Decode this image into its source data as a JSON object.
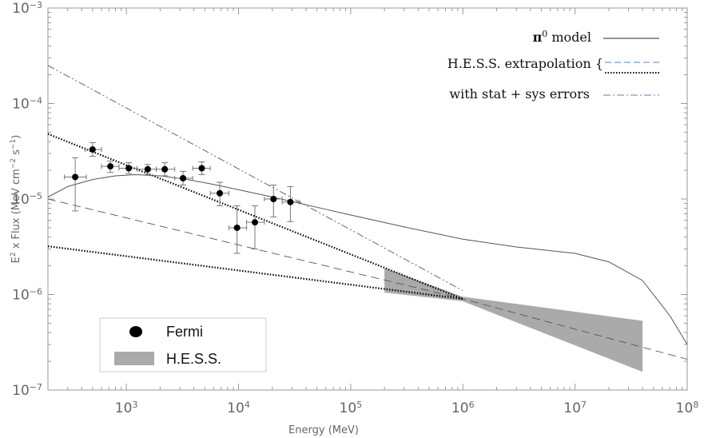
{
  "chart_data": {
    "type": "scatter",
    "xlabel": "Energy (MeV)",
    "ylabel": "E² x Flux (MeV cm⁻² s⁻¹)",
    "ylabel_parts": {
      "a": "E",
      "a_sup": "2",
      "b": " x Flux (MeV cm",
      "b_sup": "−2",
      "c": " s",
      "c_sup": "−1",
      "d": ")"
    },
    "xscale": "log",
    "yscale": "log",
    "xlim": [
      200,
      100000000
    ],
    "ylim": [
      1e-07,
      0.001
    ],
    "grid": false,
    "x_ticks": [
      {
        "value": 1000,
        "base": "10",
        "exp": "3"
      },
      {
        "value": 10000,
        "base": "10",
        "exp": "4"
      },
      {
        "value": 100000,
        "base": "10",
        "exp": "5"
      },
      {
        "value": 1000000,
        "base": "10",
        "exp": "6"
      },
      {
        "value": 10000000,
        "base": "10",
        "exp": "7"
      },
      {
        "value": 100000000,
        "base": "10",
        "exp": "8"
      }
    ],
    "y_ticks": [
      {
        "value": 1e-07,
        "base": "10",
        "exp": "−7"
      },
      {
        "value": 1e-06,
        "base": "10",
        "exp": "−6"
      },
      {
        "value": 1e-05,
        "base": "10",
        "exp": "−5"
      },
      {
        "value": 0.0001,
        "base": "10",
        "exp": "−4"
      },
      {
        "value": 0.001,
        "base": "10",
        "exp": "−3"
      }
    ],
    "fermi": {
      "name": "Fermi",
      "points": [
        {
          "x": 350,
          "y": 1.7e-05,
          "xerr": [
            280,
            440
          ],
          "yerr": [
            7.5e-06,
            2.7e-05
          ]
        },
        {
          "x": 500,
          "y": 3.3e-05,
          "xerr": [
            430,
            600
          ],
          "yerr": [
            2.8e-05,
            3.9e-05
          ]
        },
        {
          "x": 720,
          "y": 2.2e-05,
          "xerr": [
            600,
            860
          ],
          "yerr": [
            1.9e-05,
            2.5e-05
          ]
        },
        {
          "x": 1050,
          "y": 2.1e-05,
          "xerr": [
            860,
            1250
          ],
          "yerr": [
            1.85e-05,
            2.4e-05
          ]
        },
        {
          "x": 1550,
          "y": 2.05e-05,
          "xerr": [
            1250,
            1850
          ],
          "yerr": [
            1.8e-05,
            2.3e-05
          ]
        },
        {
          "x": 2200,
          "y": 2.05e-05,
          "xerr": [
            1850,
            2700
          ],
          "yerr": [
            1.75e-05,
            2.4e-05
          ]
        },
        {
          "x": 3200,
          "y": 1.65e-05,
          "xerr": [
            2700,
            3900
          ],
          "yerr": [
            1.4e-05,
            1.95e-05
          ]
        },
        {
          "x": 4700,
          "y": 2.1e-05,
          "xerr": [
            3900,
            5600
          ],
          "yerr": [
            1.8e-05,
            2.45e-05
          ]
        },
        {
          "x": 6800,
          "y": 1.15e-05,
          "xerr": [
            5600,
            8200
          ],
          "yerr": [
            8.5e-06,
            1.5e-05
          ]
        },
        {
          "x": 9700,
          "y": 5e-06,
          "xerr": [
            8200,
            11800
          ],
          "yerr": [
            2.7e-06,
            8.5e-06
          ]
        },
        {
          "x": 14000,
          "y": 5.7e-06,
          "xerr": [
            11800,
            17000
          ],
          "yerr": [
            3e-06,
            8.5e-06
          ]
        },
        {
          "x": 20500,
          "y": 1e-05,
          "xerr": [
            17000,
            24500
          ],
          "yerr": [
            6.5e-06,
            1.4e-05
          ]
        },
        {
          "x": 29000,
          "y": 9.3e-06,
          "xerr": [
            24500,
            35000
          ],
          "yerr": [
            5.8e-06,
            1.35e-05
          ]
        }
      ]
    },
    "pi0_model": {
      "name": "π⁰ model",
      "points": [
        [
          200,
          1.05e-05
        ],
        [
          300,
          1.35e-05
        ],
        [
          500,
          1.6e-05
        ],
        [
          800,
          1.75e-05
        ],
        [
          1200,
          1.8e-05
        ],
        [
          2000,
          1.75e-05
        ],
        [
          3500,
          1.6e-05
        ],
        [
          6000,
          1.42e-05
        ],
        [
          10000,
          1.25e-05
        ],
        [
          20000,
          1.05e-05
        ],
        [
          50000,
          8.2e-06
        ],
        [
          100000,
          6.8e-06
        ],
        [
          300000,
          5.1e-06
        ],
        [
          1000000,
          3.8e-06
        ],
        [
          3000000,
          3.15e-06
        ],
        [
          10000000,
          2.7e-06
        ],
        [
          20000000,
          2.2e-06
        ],
        [
          40000000,
          1.4e-06
        ],
        [
          70000000,
          6e-07
        ],
        [
          100000000,
          3e-07
        ]
      ]
    },
    "hess_extrapolation": {
      "name": "H.E.S.S. extrapolation",
      "dashed": [
        [
          200,
          1e-05
        ],
        [
          1000000,
          9e-07
        ],
        [
          100000000,
          2.1e-07
        ]
      ],
      "dotted": [
        [
          [
            200,
            4.8e-05
          ],
          [
            1000000,
            9e-07
          ]
        ],
        [
          [
            200,
            3.2e-06
          ],
          [
            1000000,
            9e-07
          ]
        ]
      ]
    },
    "stat_sys_errors": {
      "name": "with stat + sys errors",
      "dashdot": [
        [
          200,
          0.00025
        ],
        [
          1000000,
          1.1e-06
        ]
      ]
    },
    "hess": {
      "name": "H.E.S.S.",
      "band": {
        "upper": [
          [
            200000,
            1.9e-06
          ],
          [
            1000000,
            9.5e-07
          ],
          [
            40000000,
            5.3e-07
          ]
        ],
        "lower": [
          [
            200000,
            1.05e-06
          ],
          [
            1000000,
            8.5e-07
          ],
          [
            40000000,
            1.55e-07
          ]
        ]
      }
    },
    "legends": {
      "curves": [
        {
          "label_text": "π",
          "label_sup": "0",
          "label_rest": " model",
          "style": "solid"
        },
        {
          "label_text": "H.E.S.S. extrapolation {",
          "label_sup": "",
          "label_rest": "",
          "style": "dashed+dotted"
        },
        {
          "label_text": "with stat + sys errors",
          "label_sup": "",
          "label_rest": "",
          "style": "dashdot"
        }
      ],
      "box_position": "bottom-left",
      "curves_position": "top-right"
    },
    "colors": {
      "frame": "#999999",
      "fermi": "#000000",
      "model_line": "#555555",
      "hess_band": "#aaaaaa",
      "legend_blue": "#7a9cc6"
    }
  }
}
